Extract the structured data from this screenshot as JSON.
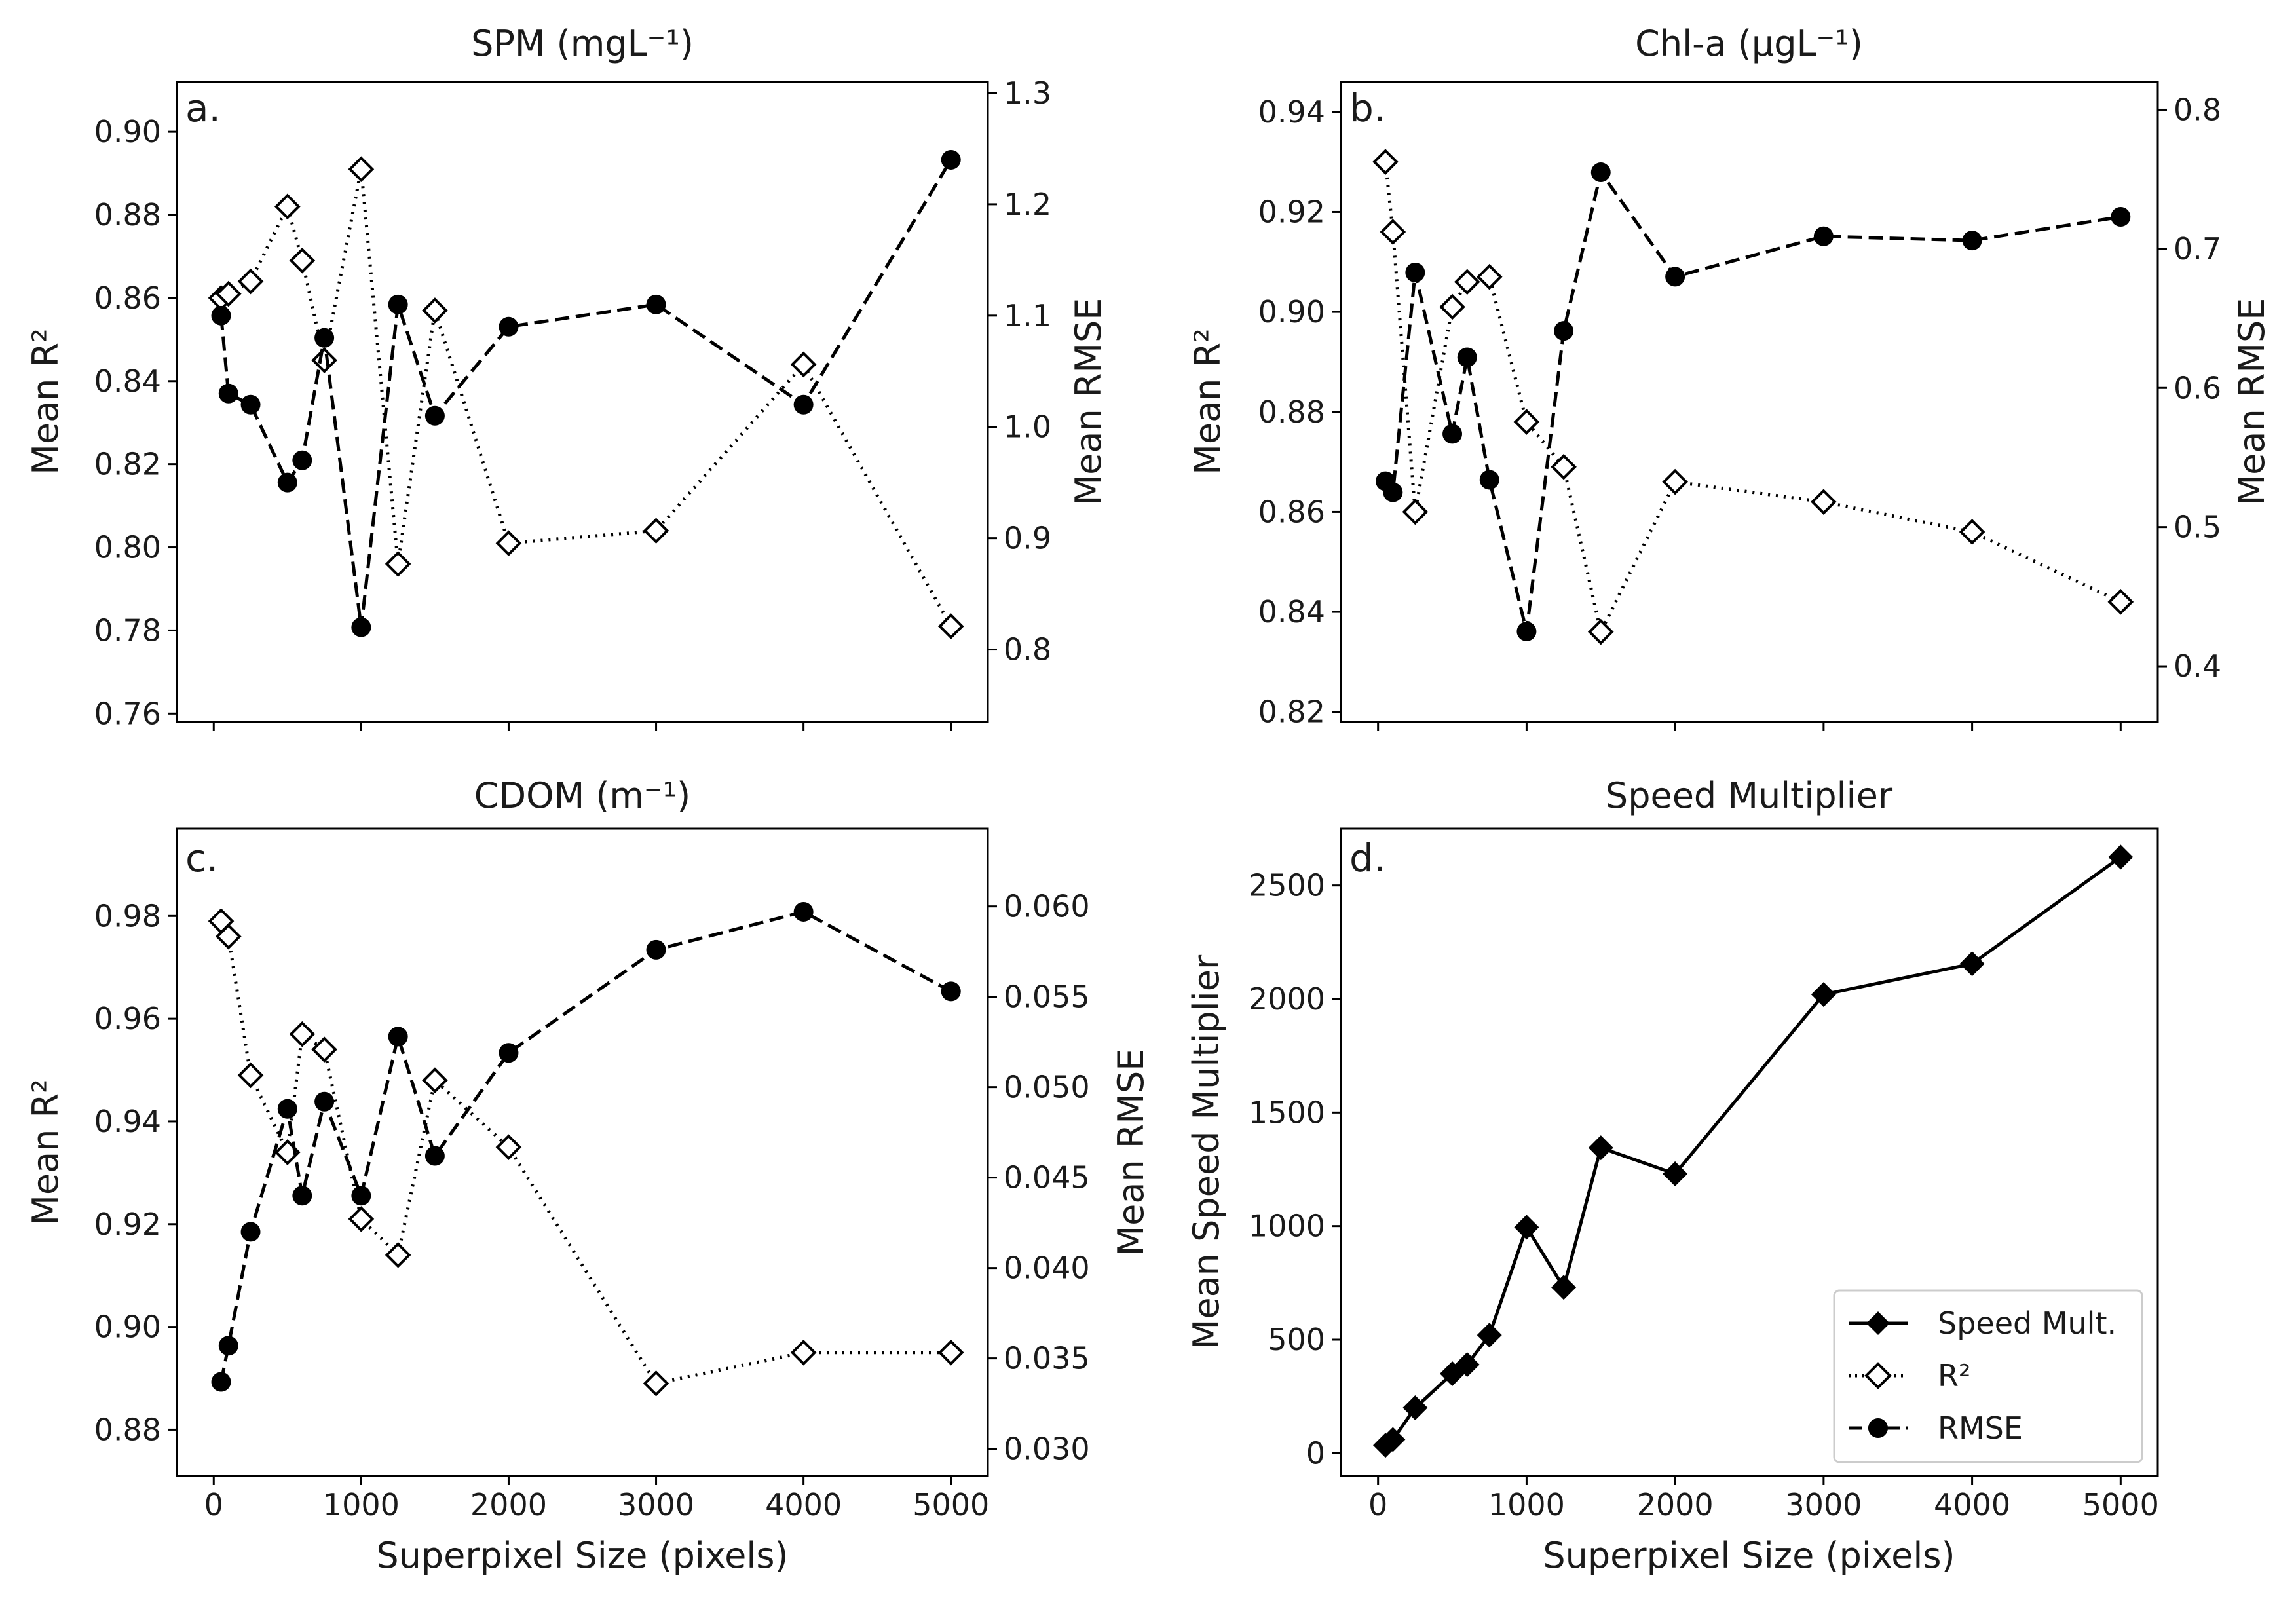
{
  "x_label": "Superpixel Size (pixels)",
  "legend": {
    "items": [
      "Speed Mult.",
      "R²",
      "RMSE"
    ],
    "placement": "lower-right"
  },
  "styles": {
    "line_color": "#000000",
    "open_marker_fill": "#ffffff"
  },
  "panels": [
    {
      "id": "a",
      "letter": "a.",
      "title": "SPM (mgL⁻¹)",
      "y_label_left": "Mean R²",
      "y_label_right": "Mean RMSE"
    },
    {
      "id": "b",
      "letter": "b.",
      "title": "Chl-a (μgL⁻¹)",
      "y_label_left": "Mean R²",
      "y_label_right": "Mean RMSE"
    },
    {
      "id": "c",
      "letter": "c.",
      "title": "CDOM (m⁻¹)",
      "y_label_left": "Mean R²",
      "y_label_right": "Mean RMSE"
    },
    {
      "id": "d",
      "letter": "d.",
      "title": "Speed Multiplier",
      "y_label_left": "Mean Speed Multiplier"
    }
  ],
  "chart_data": [
    {
      "panel": "a",
      "type": "line",
      "title": "SPM (mgL⁻¹)",
      "xlabel": "",
      "xlim": [
        -250,
        5250
      ],
      "xticks": [
        0,
        1000,
        2000,
        3000,
        4000,
        5000
      ],
      "x": [
        50,
        100,
        250,
        500,
        600,
        750,
        1000,
        1250,
        1500,
        2000,
        3000,
        4000,
        5000
      ],
      "left_axis": {
        "label": "Mean R²",
        "ylim": [
          0.758,
          0.912
        ],
        "ticks": [
          "0.76",
          "0.78",
          "0.80",
          "0.82",
          "0.84",
          "0.86",
          "0.88",
          "0.90"
        ]
      },
      "right_axis": {
        "label": "Mean RMSE",
        "ylim": [
          0.735,
          1.31
        ],
        "ticks": [
          "0.8",
          "0.9",
          "1.0",
          "1.1",
          "1.2",
          "1.3"
        ]
      },
      "series": [
        {
          "name": "R²",
          "axis": "left",
          "style": "dotted-open-diamond",
          "values": [
            0.86,
            0.861,
            0.864,
            0.882,
            0.869,
            0.845,
            0.891,
            0.796,
            0.857,
            0.801,
            0.804,
            0.844,
            0.781
          ]
        },
        {
          "name": "RMSE",
          "axis": "right",
          "style": "dashed-filled-circle",
          "values": [
            1.1,
            1.03,
            1.02,
            0.95,
            0.97,
            1.08,
            0.82,
            1.11,
            1.01,
            1.09,
            1.11,
            1.02,
            1.24
          ]
        }
      ]
    },
    {
      "panel": "b",
      "type": "line",
      "title": "Chl-a (μgL⁻¹)",
      "xlabel": "",
      "xlim": [
        -250,
        5250
      ],
      "xticks": [
        0,
        1000,
        2000,
        3000,
        4000,
        5000
      ],
      "x": [
        50,
        100,
        250,
        500,
        600,
        750,
        1000,
        1250,
        1500,
        2000,
        3000,
        4000,
        5000
      ],
      "left_axis": {
        "label": "Mean R²",
        "ylim": [
          0.818,
          0.946
        ],
        "ticks": [
          "0.82",
          "0.84",
          "0.86",
          "0.88",
          "0.90",
          "0.92",
          "0.94"
        ]
      },
      "right_axis": {
        "label": "Mean RMSE",
        "ylim": [
          0.36,
          0.82
        ],
        "ticks": [
          "0.4",
          "0.5",
          "0.6",
          "0.7",
          "0.8"
        ]
      },
      "series": [
        {
          "name": "R²",
          "axis": "left",
          "style": "dotted-open-diamond",
          "values": [
            0.93,
            0.916,
            0.86,
            0.901,
            0.906,
            0.907,
            0.878,
            0.869,
            0.836,
            0.866,
            0.862,
            0.856,
            0.842
          ]
        },
        {
          "name": "RMSE",
          "axis": "right",
          "style": "dashed-filled-circle",
          "values": [
            0.533,
            0.525,
            0.683,
            0.567,
            0.622,
            0.534,
            0.425,
            0.641,
            0.755,
            0.68,
            0.709,
            0.706,
            0.723
          ]
        }
      ]
    },
    {
      "panel": "c",
      "type": "line",
      "title": "CDOM (m⁻¹)",
      "xlabel": "Superpixel Size (pixels)",
      "xlim": [
        -250,
        5250
      ],
      "xticks": [
        0,
        1000,
        2000,
        3000,
        4000,
        5000
      ],
      "x": [
        50,
        100,
        250,
        500,
        600,
        750,
        1000,
        1250,
        1500,
        2000,
        3000,
        4000,
        5000
      ],
      "left_axis": {
        "label": "Mean R²",
        "ylim": [
          0.871,
          0.997
        ],
        "ticks": [
          "0.88",
          "0.90",
          "0.92",
          "0.94",
          "0.96",
          "0.98"
        ]
      },
      "right_axis": {
        "label": "Mean RMSE",
        "ylim": [
          0.0285,
          0.0643
        ],
        "ticks": [
          "0.030",
          "0.035",
          "0.040",
          "0.045",
          "0.050",
          "0.055",
          "0.060"
        ]
      },
      "series": [
        {
          "name": "R²",
          "axis": "left",
          "style": "dotted-open-diamond",
          "values": [
            0.979,
            0.976,
            0.949,
            0.934,
            0.957,
            0.954,
            0.921,
            0.914,
            0.948,
            0.935,
            0.889,
            0.895,
            0.895
          ]
        },
        {
          "name": "RMSE",
          "axis": "right",
          "style": "dashed-filled-circle",
          "values": [
            0.0337,
            0.0357,
            0.042,
            0.0488,
            0.044,
            0.0492,
            0.044,
            0.0528,
            0.0462,
            0.0519,
            0.0576,
            0.0597,
            0.0553
          ]
        }
      ]
    },
    {
      "panel": "d",
      "type": "line",
      "title": "Speed Multiplier",
      "xlabel": "Superpixel Size (pixels)",
      "ylabel": "Mean Speed Multiplier",
      "xlim": [
        -250,
        5250
      ],
      "xticks": [
        0,
        1000,
        2000,
        3000,
        4000,
        5000
      ],
      "x": [
        50,
        100,
        250,
        500,
        600,
        750,
        1000,
        1250,
        1500,
        2000,
        3000,
        4000,
        5000
      ],
      "ylim": [
        -100,
        2750
      ],
      "yticks": [
        "0",
        "500",
        "1000",
        "1500",
        "2000",
        "2500"
      ],
      "series": [
        {
          "name": "Speed Mult.",
          "style": "solid-filled-diamond",
          "values": [
            35,
            60,
            200,
            350,
            390,
            520,
            995,
            730,
            1345,
            1230,
            2020,
            2155,
            2625
          ]
        }
      ]
    }
  ]
}
